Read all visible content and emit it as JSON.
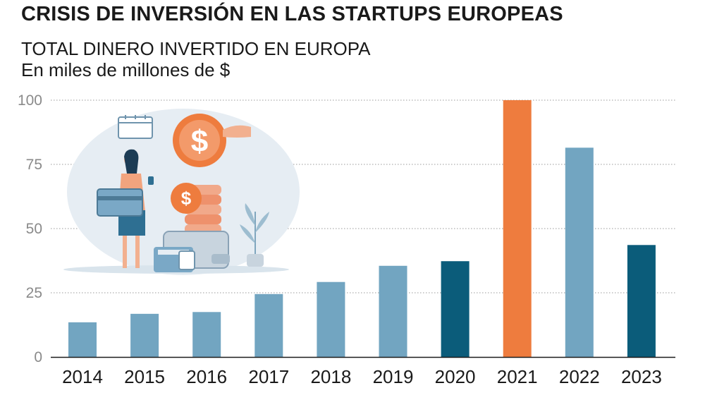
{
  "header": {
    "title": "CRISIS DE INVERSIÓN EN LAS STARTUPS EUROPEAS",
    "subtitle": "TOTAL DINERO INVERTIDO EN EUROPA",
    "units": "En miles de millones de $"
  },
  "colors": {
    "regular": "#72a5c1",
    "highlight_dark": "#0b5c7a",
    "highlight_peak": "#ee7c3e",
    "grid": "#9a9a9a",
    "axis": "#1a1a1a"
  },
  "chart_data": {
    "type": "bar",
    "title": "",
    "xlabel": "",
    "ylabel": "",
    "categories": [
      "2014",
      "2015",
      "2016",
      "2017",
      "2018",
      "2019",
      "2020",
      "2021",
      "2022",
      "2023"
    ],
    "values": [
      13.5,
      16.8,
      17.5,
      24.5,
      29.2,
      35.5,
      37.3,
      100,
      81.5,
      43.6
    ],
    "bar_colors": [
      "regular",
      "regular",
      "regular",
      "regular",
      "regular",
      "regular",
      "highlight_dark",
      "highlight_peak",
      "regular",
      "highlight_dark"
    ],
    "ylim": [
      0,
      100
    ],
    "yticks": [
      "0",
      "25",
      "50",
      "75",
      "100"
    ],
    "ytick_values": [
      0,
      25,
      50,
      75,
      100
    ],
    "grid": true,
    "legend": "none"
  },
  "illustration": {
    "description_icon": "investment-illustration"
  }
}
